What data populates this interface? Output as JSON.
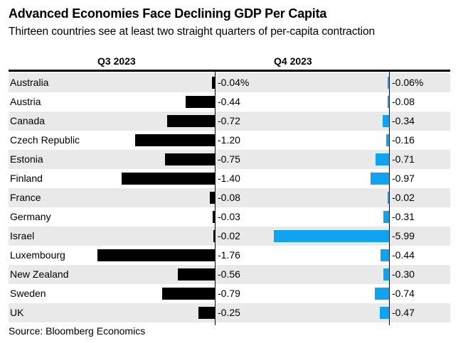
{
  "page": {
    "title": "Advanced Economies Face Declining GDP Per Capita",
    "subtitle": "Thirteen countries see at least two straight quarters of per-capita contraction",
    "source": "Source: Bloomberg Economics"
  },
  "columns": {
    "q3": "Q3 2023",
    "q4": "Q4 2023"
  },
  "colors": {
    "q3_bar": "#000000",
    "q4_bar": "#0fa4f1",
    "row_stripe": "#e9e9e9",
    "axis_line": "#000000",
    "rule": "#000000"
  },
  "chart_data": {
    "type": "bar",
    "orientation": "horizontal",
    "value_unit": "percent",
    "title": "Advanced Economies Face Declining GDP Per Capita",
    "subtitle": "Thirteen countries see at least two straight quarters of per-capita contraction",
    "source": "Source: Bloomberg Economics",
    "grid": false,
    "legend_position": "column-headers",
    "categories": [
      "Australia",
      "Austria",
      "Canada",
      "Czech Republic",
      "Estonia",
      "Finland",
      "France",
      "Germany",
      "Israel",
      "Luxembourg",
      "New Zealand",
      "Sweden",
      "UK"
    ],
    "series": [
      {
        "name": "Q3 2023",
        "color": "#000000",
        "axis_abs_max": 1.76,
        "values": [
          -0.04,
          -0.44,
          -0.72,
          -1.2,
          -0.75,
          -1.4,
          -0.08,
          -0.03,
          -0.02,
          -1.76,
          -0.56,
          -0.79,
          -0.25
        ],
        "labels": [
          "-0.04%",
          "-0.44",
          "-0.72",
          "-1.20",
          "-0.75",
          "-1.40",
          "-0.08",
          "-0.03",
          "-0.02",
          "-1.76",
          "-0.56",
          "-0.79",
          "-0.25"
        ]
      },
      {
        "name": "Q4 2023",
        "color": "#0fa4f1",
        "axis_abs_max": 5.99,
        "values": [
          -0.06,
          -0.08,
          -0.34,
          -0.16,
          -0.71,
          -0.97,
          -0.02,
          -0.31,
          -5.99,
          -0.44,
          -0.3,
          -0.74,
          -0.47
        ],
        "labels": [
          "-0.06%",
          "-0.08",
          "-0.34",
          "-0.16",
          "-0.71",
          "-0.97",
          "-0.02",
          "-0.31",
          "-5.99",
          "-0.44",
          "-0.30",
          "-0.74",
          "-0.47"
        ]
      }
    ]
  }
}
